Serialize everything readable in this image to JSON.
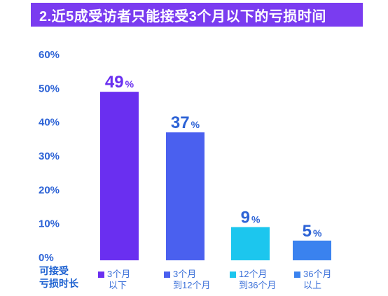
{
  "title": "2.近5成受访者只能接受3个月以下的亏损时间",
  "legend_title_lines": [
    "可接受",
    "亏损时长"
  ],
  "colors": {
    "title_bg": "#7a3cf0",
    "bar_1": "#6a2ff0",
    "bar_2": "#4a60ef",
    "bar_3": "#1cc6ee",
    "bar_4": "#3a82ef",
    "label_blue": "#2d63d6"
  },
  "chart_data": {
    "type": "bar",
    "categories": [
      "3个月以下",
      "3个月到12个月",
      "12个月到36个月",
      "36个月以上"
    ],
    "values": [
      49,
      37,
      9,
      5
    ],
    "value_labels": [
      "49",
      "37",
      "9",
      "5"
    ],
    "value_suffix": "%",
    "ylim": [
      0,
      60
    ],
    "yticks": [
      "0%",
      "10%",
      "20%",
      "30%",
      "40%",
      "50%",
      "60%"
    ],
    "legend": [
      {
        "lines": [
          "3个月",
          "以下"
        ]
      },
      {
        "lines": [
          "3个月",
          "到12个月"
        ]
      },
      {
        "lines": [
          "12个月",
          "到36个月"
        ]
      },
      {
        "lines": [
          "36个月",
          "以上"
        ]
      }
    ],
    "grid": false,
    "title": "2.近5成受访者只能接受3个月以下的亏损时间",
    "xlabel": "",
    "ylabel": ""
  }
}
